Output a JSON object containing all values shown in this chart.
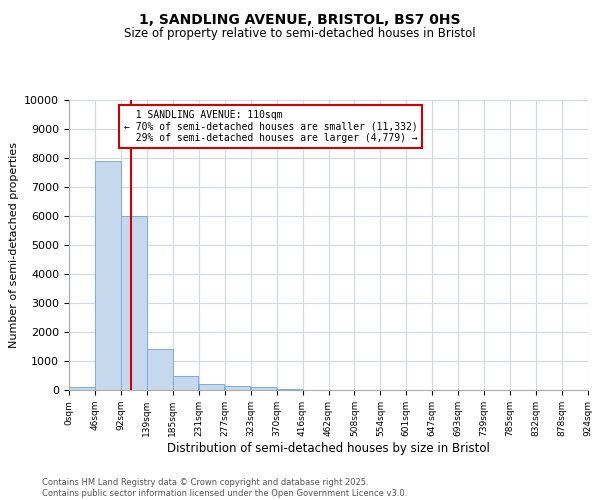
{
  "title_line1": "1, SANDLING AVENUE, BRISTOL, BS7 0HS",
  "title_line2": "Size of property relative to semi-detached houses in Bristol",
  "xlabel": "Distribution of semi-detached houses by size in Bristol",
  "ylabel": "Number of semi-detached properties",
  "bar_values": [
    100,
    7900,
    6000,
    1400,
    500,
    220,
    150,
    100,
    50,
    0,
    0,
    0,
    0,
    0,
    0,
    0,
    0,
    0,
    0,
    0
  ],
  "bar_color": "#c5d8ed",
  "bar_edge_color": "#7aaed6",
  "x_labels": [
    "0sqm",
    "46sqm",
    "92sqm",
    "139sqm",
    "185sqm",
    "231sqm",
    "277sqm",
    "323sqm",
    "370sqm",
    "416sqm",
    "462sqm",
    "508sqm",
    "554sqm",
    "601sqm",
    "647sqm",
    "693sqm",
    "739sqm",
    "785sqm",
    "832sqm",
    "878sqm",
    "924sqm"
  ],
  "property_size_bin": 2,
  "property_label": "1 SANDLING AVENUE: 110sqm",
  "pct_smaller": 70,
  "n_smaller": 11332,
  "pct_larger": 29,
  "n_larger": 4779,
  "annotation_box_color": "#ffffff",
  "annotation_box_edge": "#cc0000",
  "red_line_color": "#cc0000",
  "ylim": [
    0,
    10000
  ],
  "yticks": [
    0,
    1000,
    2000,
    3000,
    4000,
    5000,
    6000,
    7000,
    8000,
    9000,
    10000
  ],
  "footnote_line1": "Contains HM Land Registry data © Crown copyright and database right 2025.",
  "footnote_line2": "Contains public sector information licensed under the Open Government Licence v3.0.",
  "background_color": "#ffffff",
  "grid_color": "#d0d8e4",
  "bin_width": 46
}
